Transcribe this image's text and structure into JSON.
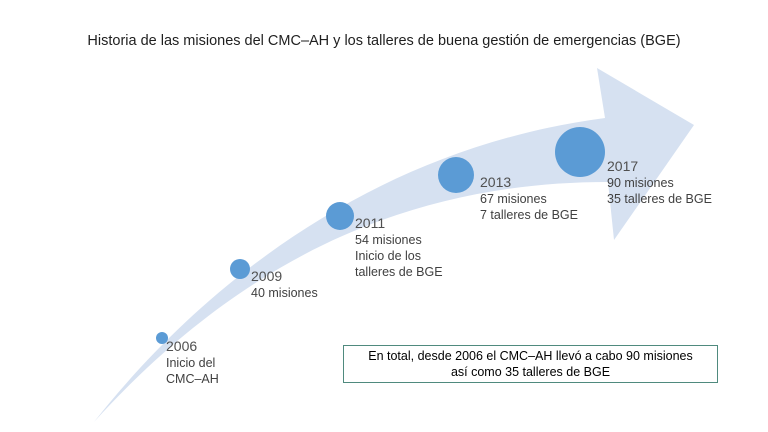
{
  "title": "Historia de las misiones del CMC–AH y los talleres de buena gestión de emergencias (BGE)",
  "milestones": [
    {
      "year": "2006",
      "lines": [
        "Inicio del",
        "CMC–AH"
      ]
    },
    {
      "year": "2009",
      "lines": [
        "40 misiones"
      ]
    },
    {
      "year": "2011",
      "lines": [
        "54 misiones",
        "Inicio de los",
        "talleres de BGE"
      ]
    },
    {
      "year": "2013",
      "lines": [
        "67 misiones",
        "7 talleres de BGE"
      ]
    },
    {
      "year": "2017",
      "lines": [
        "90 misiones",
        "35 talleres de BGE"
      ]
    }
  ],
  "summary": {
    "line1": "En total, desde 2006 el CMC–AH llevó a cabo 90 misiones",
    "line2": "así como 35 talleres de BGE"
  },
  "colors": {
    "arrow": "#d6e1f1",
    "circle": "#5b9bd5",
    "border": "#4f8a7e"
  }
}
